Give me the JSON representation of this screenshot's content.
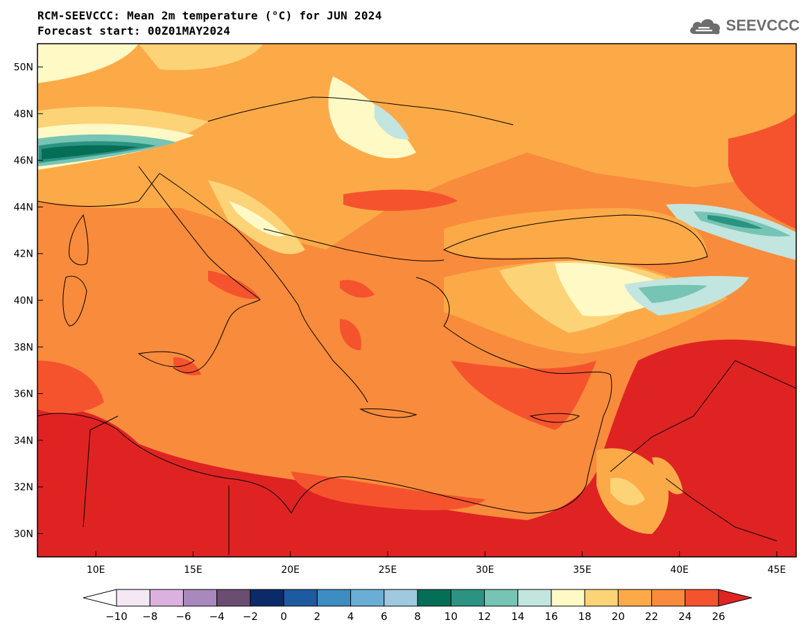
{
  "header": {
    "title": "RCM-SEEVCCC: Mean 2m temperature (°C) for JUN 2024",
    "subtitle": "Forecast start: 00Z01MAY2024"
  },
  "logo": {
    "text": "SEEVCCC",
    "icon": "cloud-logo-icon",
    "color": "#6d6d6d"
  },
  "map": {
    "lat_range": [
      29,
      51
    ],
    "lon_range": [
      7,
      46
    ],
    "lat_ticks": [
      "30N",
      "32N",
      "34N",
      "36N",
      "38N",
      "40N",
      "42N",
      "44N",
      "46N",
      "48N",
      "50N"
    ],
    "lon_ticks": [
      "10E",
      "15E",
      "20E",
      "25E",
      "30E",
      "35E",
      "40E",
      "45E"
    ],
    "sea_color": "#f98b3c"
  },
  "colorbar": {
    "labels": [
      "-10",
      "-8",
      "-6",
      "-4",
      "-2",
      "0",
      "2",
      "4",
      "6",
      "8",
      "10",
      "12",
      "14",
      "16",
      "18",
      "20",
      "22",
      "24",
      "26"
    ],
    "colors": [
      "#ffffff",
      "#f3e8f4",
      "#dbb2df",
      "#a988bd",
      "#6a4d71",
      "#0b2a69",
      "#1e5aa0",
      "#3d8cc2",
      "#6aaed6",
      "#9ec9e0",
      "#046e56",
      "#2c9382",
      "#76c4b4",
      "#c2e5df",
      "#fff9c6",
      "#fdd378",
      "#fcaa48",
      "#f98b3c",
      "#f5532d",
      "#df2323"
    ]
  }
}
